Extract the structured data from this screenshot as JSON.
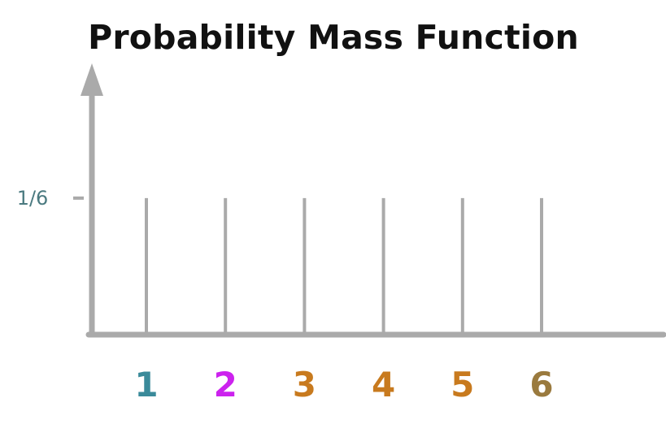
{
  "chart_data": {
    "type": "bar",
    "title": "Probability Mass Function",
    "xlabel": "",
    "ylabel": "",
    "categories": [
      "1",
      "2",
      "3",
      "4",
      "5",
      "6"
    ],
    "values": [
      0.1667,
      0.1667,
      0.1667,
      0.1667,
      0.1667,
      0.1667
    ],
    "ylim": [
      0,
      0.2727
    ],
    "y_ticks": [
      {
        "value": 0.1667,
        "label": "1/6"
      }
    ],
    "grid": false,
    "legend": "none",
    "colors": {
      "axis": "#aaaaaa",
      "stems": "#aaaaaa",
      "y_tick_label": "#4b7a80",
      "category_labels": [
        "#3a8a9a",
        "#cc22ee",
        "#c87a1e",
        "#c87a1e",
        "#c87a1e",
        "#9a7a3e"
      ]
    }
  }
}
